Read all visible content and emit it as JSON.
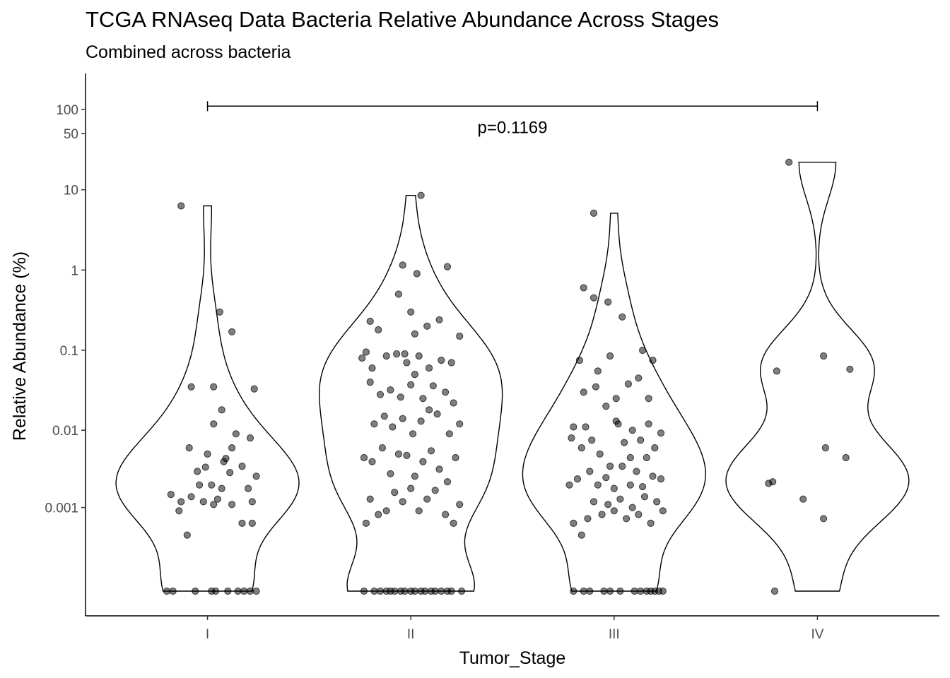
{
  "chart_data": {
    "type": "violin",
    "title": "TCGA RNAseq Data Bacteria Relative Abundance Across Stages",
    "subtitle": "Combined across bacteria",
    "xlabel": "Tumor_Stage",
    "ylabel": "Relative Abundance (%)",
    "y_scale": "pseudo-log",
    "ylim": [
      0,
      150
    ],
    "y_ticks": [
      0.001,
      0.01,
      0.1,
      1,
      10,
      50,
      100
    ],
    "y_tick_labels": [
      "0.001",
      "0.01",
      "0.1",
      "1",
      "10",
      "50",
      "100"
    ],
    "grid": false,
    "legend": "none",
    "categories": [
      "I",
      "II",
      "III",
      "IV"
    ],
    "comparison": {
      "from": "I",
      "to": "IV",
      "y": 110,
      "label": "p=0.1169"
    },
    "colors": {
      "points": "#000000",
      "point_opacity": 0.5,
      "violin_outline": "#000000"
    },
    "series": [
      {
        "category": "I",
        "max": 6.3,
        "points": [
          [
            -0.2,
            0
          ],
          [
            -0.17,
            0
          ],
          [
            -0.06,
            0
          ],
          [
            0.02,
            0
          ],
          [
            0.04,
            0
          ],
          [
            0.1,
            0
          ],
          [
            0.15,
            0
          ],
          [
            0.18,
            0
          ],
          [
            0.21,
            0
          ],
          [
            0.24,
            0
          ],
          [
            -0.18,
            0.0015
          ],
          [
            -0.14,
            0.0009
          ],
          [
            -0.08,
            0.0014
          ],
          [
            -0.02,
            0.0012
          ],
          [
            0.02,
            0.002
          ],
          [
            0.07,
            0.0018
          ],
          [
            0.12,
            0.0011
          ],
          [
            0.17,
            0.0006
          ],
          [
            0.22,
            0.0012
          ],
          [
            -0.1,
            0.0004
          ],
          [
            -0.05,
            0.003
          ],
          [
            0.0,
            0.005
          ],
          [
            0.03,
            0.0011
          ],
          [
            0.08,
            0.004
          ],
          [
            0.14,
            0.009
          ],
          [
            0.2,
            0.0018
          ],
          [
            0.24,
            0.0026
          ],
          [
            -0.13,
            0.0012
          ],
          [
            0.05,
            0.0013
          ],
          [
            0.11,
            0.0029
          ],
          [
            -0.01,
            0.0034
          ],
          [
            0.09,
            0.0044
          ],
          [
            0.17,
            0.0035
          ],
          [
            0.22,
            0.0006
          ],
          [
            0.21,
            0.008
          ],
          [
            -0.09,
            0.006
          ],
          [
            0.03,
            0.012
          ],
          [
            0.07,
            0.018
          ],
          [
            -0.04,
            0.002
          ],
          [
            0.12,
            0.006
          ],
          [
            -0.08,
            0.035
          ],
          [
            0.03,
            0.035
          ],
          [
            0.23,
            0.033
          ],
          [
            0.06,
            0.3
          ],
          [
            0.12,
            0.17
          ],
          [
            -0.13,
            6.3
          ]
        ]
      },
      {
        "category": "II",
        "max": 8.5,
        "points": [
          [
            -0.23,
            0
          ],
          [
            -0.18,
            0
          ],
          [
            -0.15,
            0
          ],
          [
            -0.12,
            0
          ],
          [
            -0.1,
            0
          ],
          [
            -0.08,
            0
          ],
          [
            -0.05,
            0
          ],
          [
            -0.03,
            0
          ],
          [
            0.0,
            0
          ],
          [
            0.02,
            0
          ],
          [
            0.05,
            0
          ],
          [
            0.07,
            0
          ],
          [
            0.1,
            0
          ],
          [
            0.12,
            0
          ],
          [
            0.15,
            0
          ],
          [
            0.18,
            0
          ],
          [
            0.2,
            0
          ],
          [
            0.25,
            0
          ],
          [
            -0.22,
            0.0006
          ],
          [
            -0.2,
            0.0013
          ],
          [
            -0.16,
            0.0008
          ],
          [
            -0.12,
            0.0009
          ],
          [
            -0.08,
            0.0016
          ],
          [
            -0.04,
            0.0012
          ],
          [
            0.0,
            0.0018
          ],
          [
            0.04,
            0.0009
          ],
          [
            0.08,
            0.0013
          ],
          [
            0.12,
            0.0017
          ],
          [
            0.17,
            0.0008
          ],
          [
            0.21,
            0.0006
          ],
          [
            0.24,
            0.0011
          ],
          [
            -0.19,
            0.004
          ],
          [
            -0.14,
            0.006
          ],
          [
            -0.1,
            0.0028
          ],
          [
            -0.06,
            0.005
          ],
          [
            -0.02,
            0.0048
          ],
          [
            0.02,
            0.0026
          ],
          [
            0.06,
            0.004
          ],
          [
            0.1,
            0.0055
          ],
          [
            0.14,
            0.0032
          ],
          [
            0.18,
            0.0022
          ],
          [
            0.22,
            0.0045
          ],
          [
            -0.23,
            0.0045
          ],
          [
            -0.18,
            0.012
          ],
          [
            -0.13,
            0.015
          ],
          [
            -0.09,
            0.011
          ],
          [
            -0.04,
            0.014
          ],
          [
            0.01,
            0.009
          ],
          [
            0.05,
            0.013
          ],
          [
            0.09,
            0.018
          ],
          [
            0.13,
            0.016
          ],
          [
            0.19,
            0.009
          ],
          [
            0.24,
            0.012
          ],
          [
            -0.2,
            0.04
          ],
          [
            -0.15,
            0.028
          ],
          [
            -0.1,
            0.032
          ],
          [
            -0.05,
            0.026
          ],
          [
            0.0,
            0.037
          ],
          [
            0.06,
            0.025
          ],
          [
            0.11,
            0.036
          ],
          [
            0.17,
            0.03
          ],
          [
            0.21,
            0.022
          ],
          [
            -0.24,
            0.08
          ],
          [
            -0.19,
            0.06
          ],
          [
            -0.12,
            0.085
          ],
          [
            -0.07,
            0.09
          ],
          [
            -0.02,
            0.07
          ],
          [
            0.04,
            0.085
          ],
          [
            0.09,
            0.06
          ],
          [
            0.15,
            0.075
          ],
          [
            0.2,
            0.07
          ],
          [
            -0.22,
            0.095
          ],
          [
            -0.03,
            0.09
          ],
          [
            0.02,
            0.05
          ],
          [
            -0.16,
            0.18
          ],
          [
            -0.06,
            0.5
          ],
          [
            0.0,
            0.3
          ],
          [
            -0.2,
            0.23
          ],
          [
            0.08,
            0.2
          ],
          [
            0.14,
            0.24
          ],
          [
            0.24,
            0.15
          ],
          [
            0.02,
            0.16
          ],
          [
            0.03,
            0.9
          ],
          [
            -0.04,
            1.15
          ],
          [
            0.18,
            1.1
          ],
          [
            0.05,
            8.5
          ]
        ]
      },
      {
        "category": "III",
        "max": 5.1,
        "points": [
          [
            -0.2,
            0
          ],
          [
            -0.15,
            0
          ],
          [
            -0.12,
            0
          ],
          [
            -0.05,
            0
          ],
          [
            -0.02,
            0
          ],
          [
            0.03,
            0
          ],
          [
            0.1,
            0
          ],
          [
            0.13,
            0
          ],
          [
            0.16,
            0
          ],
          [
            0.18,
            0
          ],
          [
            0.2,
            0
          ],
          [
            0.22,
            0
          ],
          [
            0.24,
            0
          ],
          [
            -0.2,
            0.0006
          ],
          [
            -0.16,
            0.0004
          ],
          [
            -0.13,
            0.0007
          ],
          [
            -0.1,
            0.0012
          ],
          [
            -0.06,
            0.0008
          ],
          [
            -0.03,
            0.0011
          ],
          [
            0.0,
            0.0009
          ],
          [
            0.03,
            0.0013
          ],
          [
            0.06,
            0.0007
          ],
          [
            0.09,
            0.001
          ],
          [
            0.12,
            0.0008
          ],
          [
            0.15,
            0.0014
          ],
          [
            0.18,
            0.0006
          ],
          [
            0.21,
            0.0012
          ],
          [
            0.24,
            0.0009
          ],
          [
            -0.22,
            0.002
          ],
          [
            -0.18,
            0.0024
          ],
          [
            -0.12,
            0.003
          ],
          [
            -0.08,
            0.002
          ],
          [
            -0.04,
            0.0025
          ],
          [
            0.0,
            0.0018
          ],
          [
            0.04,
            0.0035
          ],
          [
            0.08,
            0.002
          ],
          [
            0.11,
            0.003
          ],
          [
            0.14,
            0.0019
          ],
          [
            0.19,
            0.0026
          ],
          [
            0.23,
            0.0024
          ],
          [
            -0.21,
            0.008
          ],
          [
            -0.16,
            0.006
          ],
          [
            -0.11,
            0.0075
          ],
          [
            -0.07,
            0.005
          ],
          [
            -0.02,
            0.0035
          ],
          [
            0.02,
            0.012
          ],
          [
            0.05,
            0.007
          ],
          [
            0.09,
            0.01
          ],
          [
            0.13,
            0.0075
          ],
          [
            0.17,
            0.012
          ],
          [
            0.2,
            0.006
          ],
          [
            0.23,
            0.0092
          ],
          [
            -0.2,
            0.011
          ],
          [
            -0.14,
            0.011
          ],
          [
            0.01,
            0.013
          ],
          [
            0.08,
            0.0045
          ],
          [
            0.16,
            0.0045
          ],
          [
            -0.15,
            0.03
          ],
          [
            -0.09,
            0.035
          ],
          [
            -0.04,
            0.02
          ],
          [
            0.01,
            0.025
          ],
          [
            0.07,
            0.038
          ],
          [
            0.12,
            0.045
          ],
          [
            0.17,
            0.025
          ],
          [
            -0.17,
            0.075
          ],
          [
            -0.08,
            0.055
          ],
          [
            -0.02,
            0.085
          ],
          [
            0.14,
            0.1
          ],
          [
            0.19,
            0.075
          ],
          [
            0.04,
            0.26
          ],
          [
            -0.1,
            0.45
          ],
          [
            -0.03,
            0.4
          ],
          [
            -0.15,
            0.6
          ],
          [
            -0.1,
            5.1
          ]
        ]
      },
      {
        "category": "IV",
        "max": 22,
        "points": [
          [
            -0.21,
            0
          ],
          [
            -0.24,
            0.0021
          ],
          [
            -0.22,
            0.0022
          ],
          [
            -0.07,
            0.0013
          ],
          [
            0.03,
            0.0007
          ],
          [
            0.04,
            0.006
          ],
          [
            0.14,
            0.0045
          ],
          [
            -0.2,
            0.055
          ],
          [
            0.03,
            0.085
          ],
          [
            0.16,
            0.058
          ],
          [
            -0.14,
            22
          ]
        ]
      }
    ]
  }
}
